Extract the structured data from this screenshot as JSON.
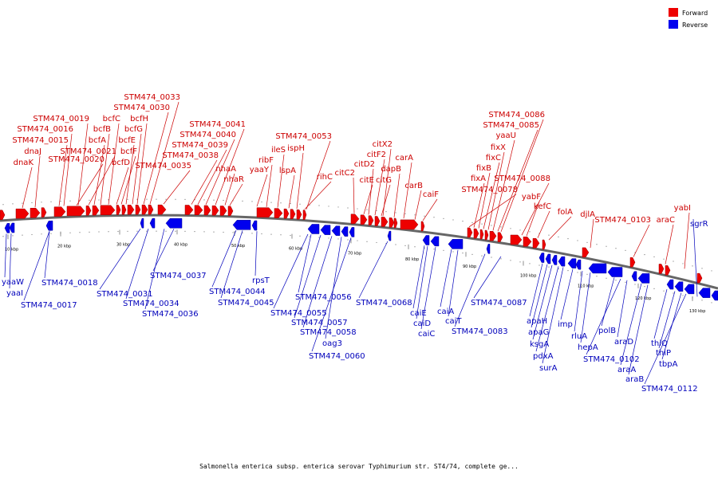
{
  "legend": {
    "forward": {
      "label": "Forward",
      "color": "#ee0000"
    },
    "reverse": {
      "label": "Reverse",
      "color": "#0000ee"
    }
  },
  "caption": "Salmonella enterica subsp. enterica serovar Typhimurium str. ST4/74, complete ge...",
  "ticks": [
    "10 kbp",
    "20 kbp",
    "30 kbp",
    "40 kbp",
    "50 kbp",
    "60 kbp",
    "70 kbp",
    "80 kbp",
    "90 kbp",
    "100 kbp",
    "110 kbp",
    "120 kbp",
    "130 kbp"
  ],
  "forward_labels": [
    "STM474_0033",
    "STM474_0030",
    "STM474_0019",
    "bcfC",
    "bcfH",
    "STM474_0016",
    "bcfB",
    "bcfG",
    "STM474_0015",
    "bcfA",
    "bcfE",
    "dnaJ",
    "STM474_0021",
    "bcfF",
    "dnaK",
    "STM474_0020",
    "bcfD",
    "STM474_0041",
    "STM474_0040",
    "STM474_0039",
    "STM474_0038",
    "STM474_0035",
    "nhaA",
    "nhaR",
    "STM474_0053",
    "ispH",
    "ileS",
    "ribF",
    "lspA",
    "yaaY",
    "rihC",
    "citC2",
    "citX2",
    "citF2",
    "citD2",
    "citE",
    "dapB",
    "citG",
    "carA",
    "carB",
    "caiF",
    "STM474_0086",
    "STM474_0085",
    "yaaU",
    "fixX",
    "fixC",
    "fixB",
    "fixA",
    "STM474_0078",
    "STM474_0088",
    "yabF",
    "kefC",
    "folA",
    "djlA",
    "STM474_0103",
    "araC",
    "yabI"
  ],
  "reverse_labels": [
    "yaaW",
    "yaaI",
    "STM474_0017",
    "STM474_0018",
    "STM474_0031",
    "STM474_0034",
    "STM474_0036",
    "STM474_0037",
    "rpsT",
    "STM474_0044",
    "STM474_0045",
    "STM474_0056",
    "STM474_0055",
    "STM474_0057",
    "STM474_0058",
    "oag3",
    "STM474_0060",
    "STM474_0068",
    "caiE",
    "caiD",
    "caiC",
    "caiA",
    "caiT",
    "STM474_0083",
    "STM474_0087",
    "apaH",
    "apaG",
    "ksgA",
    "pdxA",
    "surA",
    "imp",
    "rluA",
    "hepA",
    "polB",
    "araD",
    "STM474_0102",
    "araA",
    "araB",
    "thiQ",
    "thiP",
    "tbpA",
    "STM474_0112",
    "sgrR"
  ]
}
